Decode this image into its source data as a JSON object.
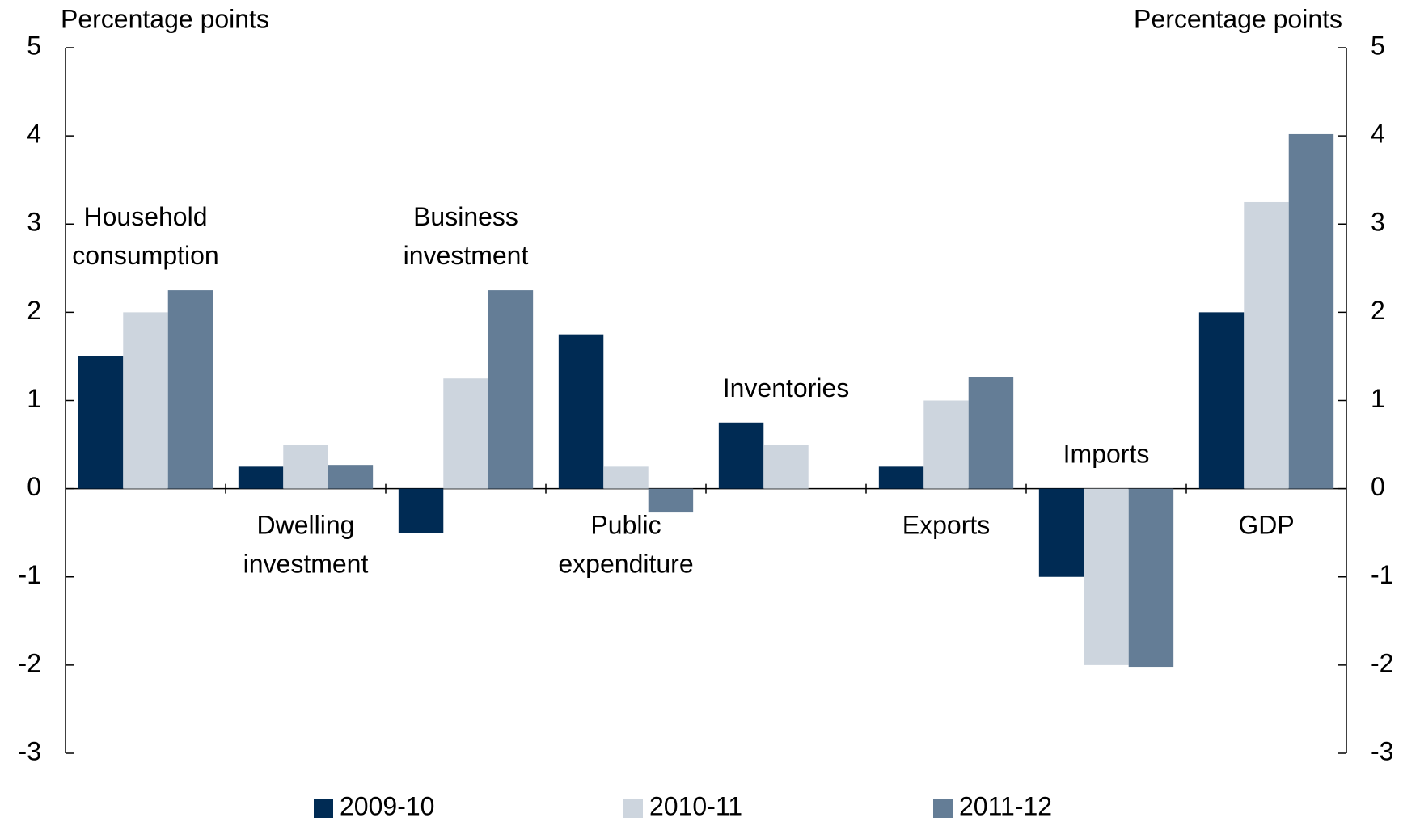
{
  "chart_data": {
    "type": "bar",
    "y_label": "Percentage points",
    "y2_label": "Percentage points",
    "categories": [
      "Household consumption",
      "Dwelling investment",
      "Business investment",
      "Public expenditure",
      "Inventories",
      "Exports",
      "Imports",
      "GDP"
    ],
    "series": [
      {
        "name": "2009-10",
        "color": "#002b54",
        "values": [
          1.5,
          0.25,
          -0.5,
          1.75,
          0.75,
          0.25,
          -1.0,
          2.0
        ]
      },
      {
        "name": "2010-11",
        "color": "#cdd5de",
        "values": [
          2.0,
          0.5,
          1.25,
          0.25,
          0.5,
          1.0,
          -2.0,
          3.25
        ]
      },
      {
        "name": "2011-12",
        "color": "#647d96",
        "values": [
          2.25,
          0.27,
          2.25,
          -0.27,
          0,
          1.27,
          -2.02,
          4.02
        ]
      }
    ],
    "ylim": [
      -3,
      5
    ],
    "yticks": [
      -3,
      -2,
      -1,
      0,
      1,
      2,
      3,
      4,
      5
    ],
    "y2lim": [
      -3,
      5
    ],
    "y2ticks": [
      -3,
      -2,
      -1,
      0,
      1,
      2,
      3,
      4,
      5
    ],
    "legend": "bottom"
  }
}
